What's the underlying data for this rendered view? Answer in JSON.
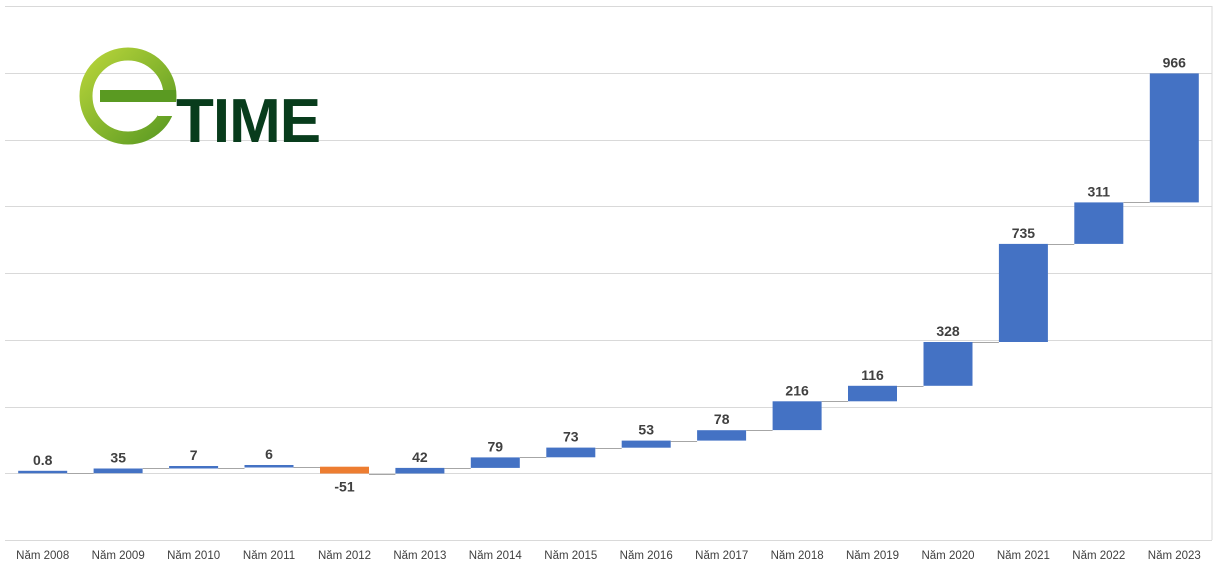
{
  "logo": {
    "letter": "e",
    "text": "TIME",
    "colors": {
      "ring": "#6faa2a",
      "ring_light": "#b7d43a",
      "text": "#083c1c"
    }
  },
  "chart_data": {
    "type": "waterfall",
    "categories": [
      "Năm 2008",
      "Năm 2009",
      "Năm 2010",
      "Năm 2011",
      "Năm 2012",
      "Năm 2013",
      "Năm 2014",
      "Năm 2015",
      "Năm 2016",
      "Năm 2017",
      "Năm 2018",
      "Năm 2019",
      "Năm 2020",
      "Năm 2021",
      "Năm 2022",
      "Năm 2023"
    ],
    "values": [
      0.8,
      35,
      7,
      6,
      -51,
      42,
      79,
      73,
      53,
      78,
      216,
      116,
      328,
      735,
      311,
      966
    ],
    "labels": [
      "0.8",
      "35",
      "7",
      "6",
      "-51",
      "42",
      "79",
      "73",
      "53",
      "78",
      "216",
      "116",
      "328",
      "735",
      "311",
      "966"
    ],
    "colors": {
      "increase": "#4472c4",
      "decrease": "#ed7d31"
    },
    "ylim": [
      -500,
      3500
    ],
    "grid_step": 500,
    "grid": true,
    "title": "",
    "xlabel": "",
    "ylabel": ""
  }
}
